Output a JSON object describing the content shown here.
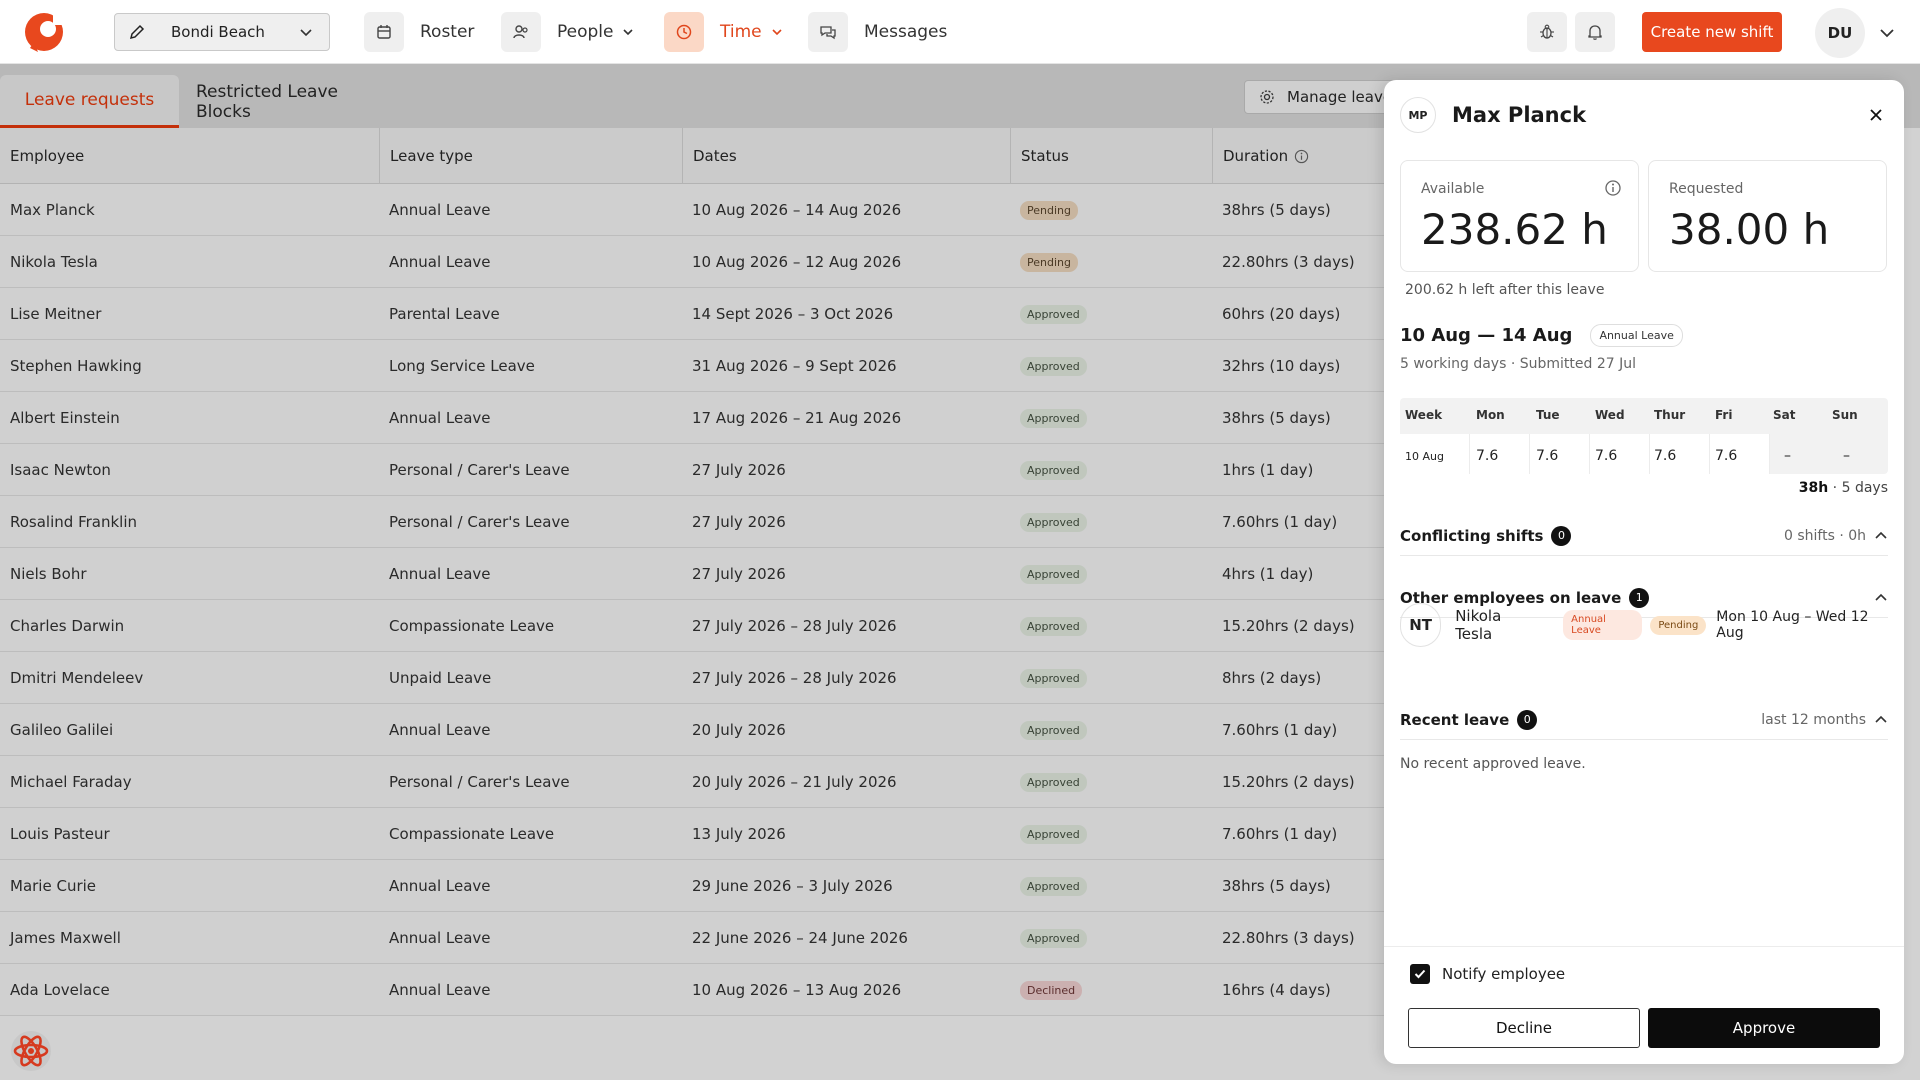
{
  "colors": {
    "brand": "#e8481e",
    "active_tab": "#c4300a",
    "approve": "#0c0c0c"
  },
  "nav": {
    "location": "Bondi Beach",
    "items": [
      {
        "label": "Roster",
        "icon": "calendar-icon"
      },
      {
        "label": "People",
        "icon": "people-icon"
      },
      {
        "label": "Time",
        "icon": "clock-icon"
      },
      {
        "label": "Messages",
        "icon": "chat-icon"
      }
    ],
    "create_label": "Create new shift",
    "avatar": "DU"
  },
  "tabs": [
    {
      "label": "Leave requests",
      "active": true
    },
    {
      "label": "Restricted Leave Blocks",
      "active": false
    }
  ],
  "manage_label": "Manage leave ty",
  "table": {
    "columns": [
      "Employee",
      "Leave type",
      "Dates",
      "Status",
      "Duration"
    ],
    "rows": [
      [
        "Max Planck",
        "Annual Leave",
        "10 Aug 2026 – 14 Aug 2026",
        "Pending",
        "38hrs (5 days)"
      ],
      [
        "Nikola Tesla",
        "Annual Leave",
        "10 Aug 2026 – 12 Aug 2026",
        "Pending",
        "22.80hrs (3 days)"
      ],
      [
        "Lise Meitner",
        "Parental Leave",
        "14 Sept 2026 – 3 Oct 2026",
        "Approved",
        "60hrs (20 days)"
      ],
      [
        "Stephen Hawking",
        "Long Service Leave",
        "31 Aug 2026 – 9 Sept 2026",
        "Approved",
        "32hrs (10 days)"
      ],
      [
        "Albert Einstein",
        "Annual Leave",
        "17 Aug 2026 – 21 Aug 2026",
        "Approved",
        "38hrs (5 days)"
      ],
      [
        "Isaac Newton",
        "Personal / Carer's Leave",
        "27 July 2026",
        "Approved",
        "1hrs (1 day)"
      ],
      [
        "Rosalind Franklin",
        "Personal / Carer's Leave",
        "27 July 2026",
        "Approved",
        "7.60hrs (1 day)"
      ],
      [
        "Niels Bohr",
        "Annual Leave",
        "27 July 2026",
        "Approved",
        "4hrs (1 day)"
      ],
      [
        "Charles Darwin",
        "Compassionate Leave",
        "27 July 2026 – 28 July 2026",
        "Approved",
        "15.20hrs (2 days)"
      ],
      [
        "Dmitri Mendeleev",
        "Unpaid Leave",
        "27 July 2026 – 28 July 2026",
        "Approved",
        "8hrs (2 days)"
      ],
      [
        "Galileo Galilei",
        "Annual Leave",
        "20 July 2026",
        "Approved",
        "7.60hrs (1 day)"
      ],
      [
        "Michael Faraday",
        "Personal / Carer's Leave",
        "20 July 2026 – 21 July 2026",
        "Approved",
        "15.20hrs (2 days)"
      ],
      [
        "Louis Pasteur",
        "Compassionate Leave",
        "13 July 2026",
        "Approved",
        "7.60hrs (1 day)"
      ],
      [
        "Marie Curie",
        "Annual Leave",
        "29 June 2026 – 3 July 2026",
        "Approved",
        "38hrs (5 days)"
      ],
      [
        "James Maxwell",
        "Annual Leave",
        "22 June 2026 – 24 June 2026",
        "Approved",
        "22.80hrs (3 days)"
      ],
      [
        "Ada Lovelace",
        "Annual Leave",
        "10 Aug 2026 – 13 Aug 2026",
        "Declined",
        "16hrs (4 days)"
      ]
    ]
  },
  "panel": {
    "initials": "MP",
    "name": "Max Planck",
    "available_label": "Available",
    "available_value": "238.62 h",
    "requested_label": "Requested",
    "requested_value": "38.00 h",
    "left_after": "200.62 h left after this leave",
    "range": "10 Aug — 14 Aug",
    "leave_type": "Annual Leave",
    "submitted": "5 working days · Submitted 27 Jul",
    "grid_headers": [
      "Week",
      "Mon",
      "Tue",
      "Wed",
      "Thur",
      "Fri",
      "Sat",
      "Sun"
    ],
    "grid_values": [
      "10 Aug",
      "7.6",
      "7.6",
      "7.6",
      "7.6",
      "7.6",
      "–",
      "–"
    ],
    "total_hours": "38h",
    "total_days": " · 5 days",
    "conflicting_label": "Conflicting shifts",
    "conflicting_count": "0",
    "conflicting_summary": "0 shifts · 0h",
    "others_label": "Other employees on leave",
    "others_count": "1",
    "other_employee": {
      "initials": "NT",
      "name": "Nikola Tesla",
      "type": "Annual Leave",
      "status": "Pending",
      "dates": "Mon 10 Aug – Wed 12 Aug"
    },
    "recent_label": "Recent leave",
    "recent_count": "0",
    "recent_period": "last 12 months",
    "no_recent": "No recent approved leave.",
    "notify_label": "Notify employee",
    "notify_checked": true,
    "decline_label": "Decline",
    "approve_label": "Approve"
  }
}
